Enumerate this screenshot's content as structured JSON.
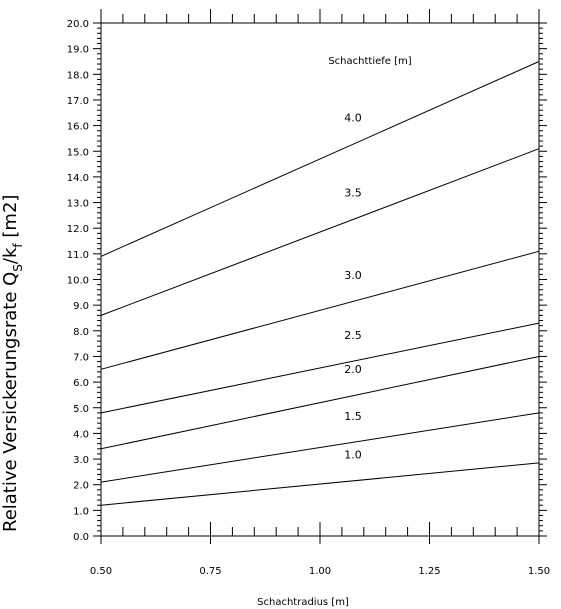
{
  "chart_data": {
    "type": "line",
    "title": "",
    "xlabel": "Schachtradius [m]",
    "ylabel": "Relative Versickerungsrate Q",
    "ylabel_sub1": "S",
    "ylabel_mid": "/k",
    "ylabel_sub2": "f",
    "ylabel_unit": " [m2]",
    "legend_title": "Schachttiefe [m]",
    "xlim": [
      0.5,
      1.5
    ],
    "ylim": [
      0.0,
      20.0
    ],
    "x_ticks": [
      "0.50",
      "0.75",
      "1.00",
      "1.25",
      "1.50"
    ],
    "y_ticks": [
      "0.0",
      "1.0",
      "2.0",
      "3.0",
      "4.0",
      "5.0",
      "6.0",
      "7.0",
      "8.0",
      "9.0",
      "10.0",
      "11.0",
      "12.0",
      "13.0",
      "14.0",
      "15.0",
      "16.0",
      "17.0",
      "18.0",
      "19.0",
      "20.0"
    ],
    "series": [
      {
        "name": "1.0",
        "x": [
          0.5,
          1.5
        ],
        "values": [
          1.2,
          2.85
        ]
      },
      {
        "name": "1.5",
        "x": [
          0.5,
          1.5
        ],
        "values": [
          2.1,
          4.8
        ]
      },
      {
        "name": "2.0",
        "x": [
          0.5,
          1.5
        ],
        "values": [
          3.4,
          7.0
        ]
      },
      {
        "name": "2.5",
        "x": [
          0.5,
          1.5
        ],
        "values": [
          4.8,
          8.3
        ]
      },
      {
        "name": "3.0",
        "x": [
          0.5,
          1.5
        ],
        "values": [
          6.5,
          11.1
        ]
      },
      {
        "name": "3.5",
        "x": [
          0.5,
          1.5
        ],
        "values": [
          8.6,
          15.1
        ]
      },
      {
        "name": "4.0",
        "x": [
          0.5,
          1.5
        ],
        "values": [
          10.9,
          18.5
        ]
      }
    ]
  }
}
